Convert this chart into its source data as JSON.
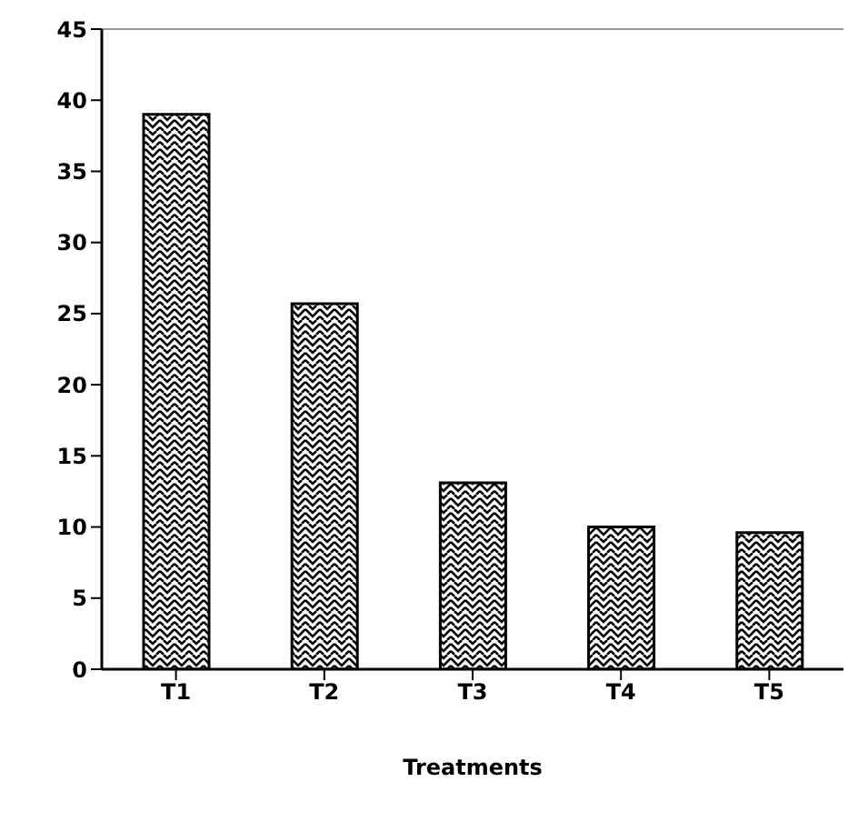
{
  "chart_data": {
    "type": "bar",
    "xlabel": "Treatments",
    "categories": [
      "T1",
      "T2",
      "T3",
      "T4",
      "T5"
    ],
    "values": [
      39,
      25.7,
      13.1,
      10,
      9.6
    ],
    "color": "#000000",
    "ylim": [
      0,
      45
    ],
    "yticks": [
      0,
      5,
      10,
      15,
      20,
      25,
      30,
      35,
      40,
      45
    ],
    "grid": false
  }
}
